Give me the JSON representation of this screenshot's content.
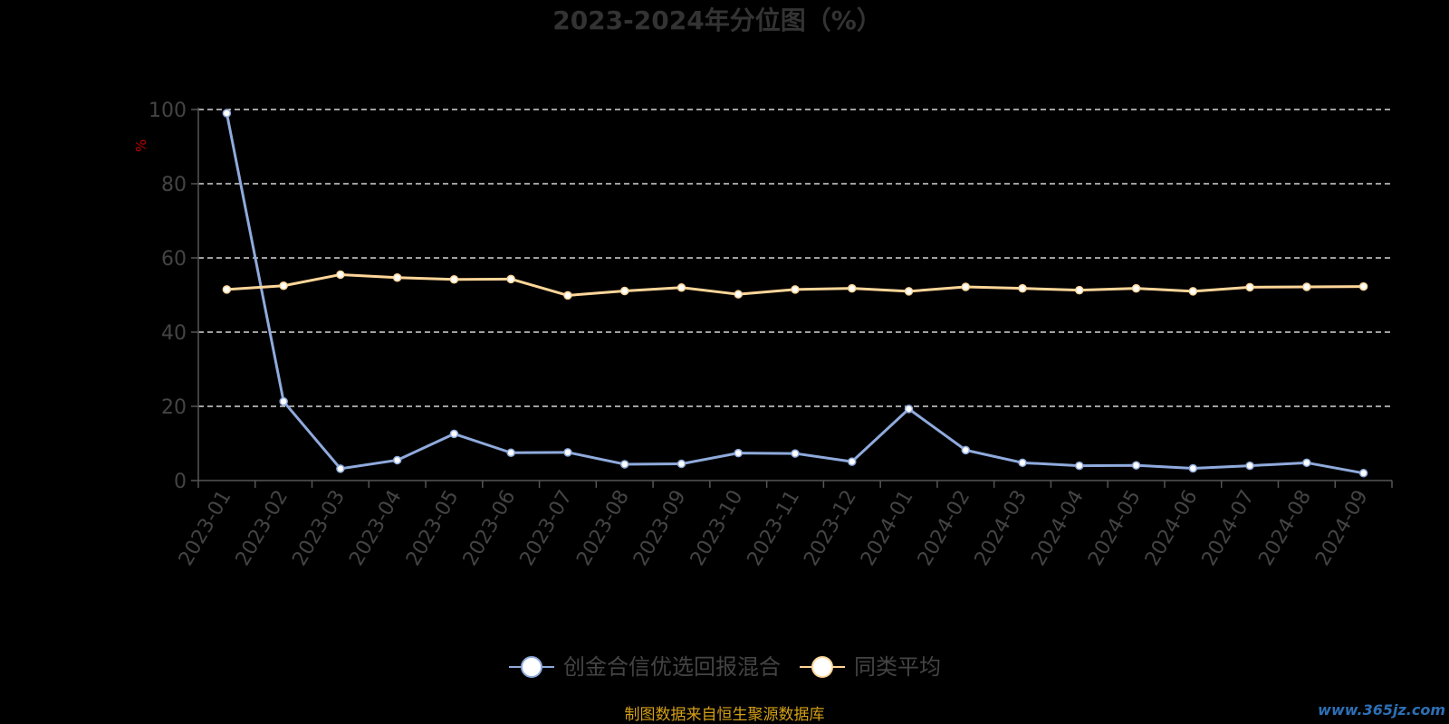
{
  "chart_data": {
    "type": "line",
    "title": "2023-2024年分位图（%）",
    "ylabel": "%",
    "ylim": [
      0,
      100
    ],
    "yticks": [
      0,
      20,
      40,
      60,
      80,
      100
    ],
    "grid": true,
    "legend_position": "bottom",
    "categories": [
      "2023-01",
      "2023-02",
      "2023-03",
      "2023-04",
      "2023-05",
      "2023-06",
      "2023-07",
      "2023-08",
      "2023-09",
      "2023-10",
      "2023-11",
      "2023-12",
      "2024-01",
      "2024-02",
      "2024-03",
      "2024-04",
      "2024-05",
      "2024-06",
      "2024-07",
      "2024-08",
      "2024-09"
    ],
    "series": [
      {
        "name": "创金合信优选回报混合",
        "color": "#8faadc",
        "values": [
          99,
          21.3,
          3.2,
          5.5,
          12.6,
          7.5,
          7.6,
          4.4,
          4.5,
          7.4,
          7.3,
          5.1,
          19.3,
          8.2,
          4.8,
          4.0,
          4.1,
          3.3,
          4.0,
          4.8,
          2.0
        ]
      },
      {
        "name": "同类平均",
        "color": "#ffd699",
        "values": [
          51.5,
          52.5,
          55.5,
          54.7,
          54.2,
          54.3,
          49.9,
          51.1,
          52.0,
          50.2,
          51.5,
          51.8,
          51.0,
          52.2,
          51.8,
          51.3,
          51.8,
          51.0,
          52.1,
          52.2,
          52.3
        ]
      }
    ]
  },
  "footer": {
    "source": "制图数据来自恒生聚源数据库",
    "watermark": "www.365jz.com"
  }
}
